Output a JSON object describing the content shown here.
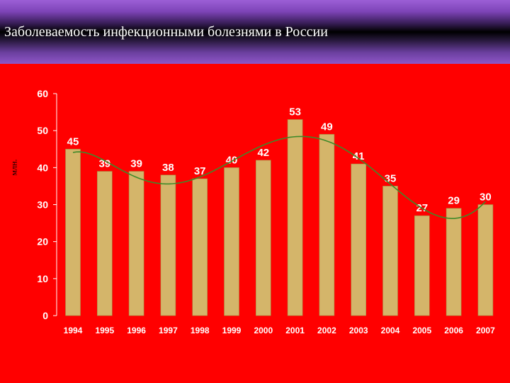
{
  "title": "Заболеваемость инфекционными болезнями в России",
  "chart_data": {
    "type": "bar",
    "ylabel": "млн.",
    "ylim": [
      0,
      60
    ],
    "yticks": [
      0,
      10,
      20,
      30,
      40,
      50,
      60
    ],
    "categories": [
      "1994",
      "1995",
      "1996",
      "1997",
      "1998",
      "1999",
      "2000",
      "2001",
      "2002",
      "2003",
      "2004",
      "2005",
      "2006",
      "2007"
    ],
    "values": [
      45,
      39,
      39,
      38,
      37,
      40,
      42,
      53,
      49,
      41,
      35,
      27,
      29,
      30
    ],
    "trendline": "polynomial",
    "data_labels": true,
    "grid": false,
    "colors": {
      "background": "#ff0000",
      "bar": "#d4b56a",
      "bar_edge": "#a8893f",
      "trend": "#3f8a2a",
      "text": "#ffffff"
    }
  }
}
